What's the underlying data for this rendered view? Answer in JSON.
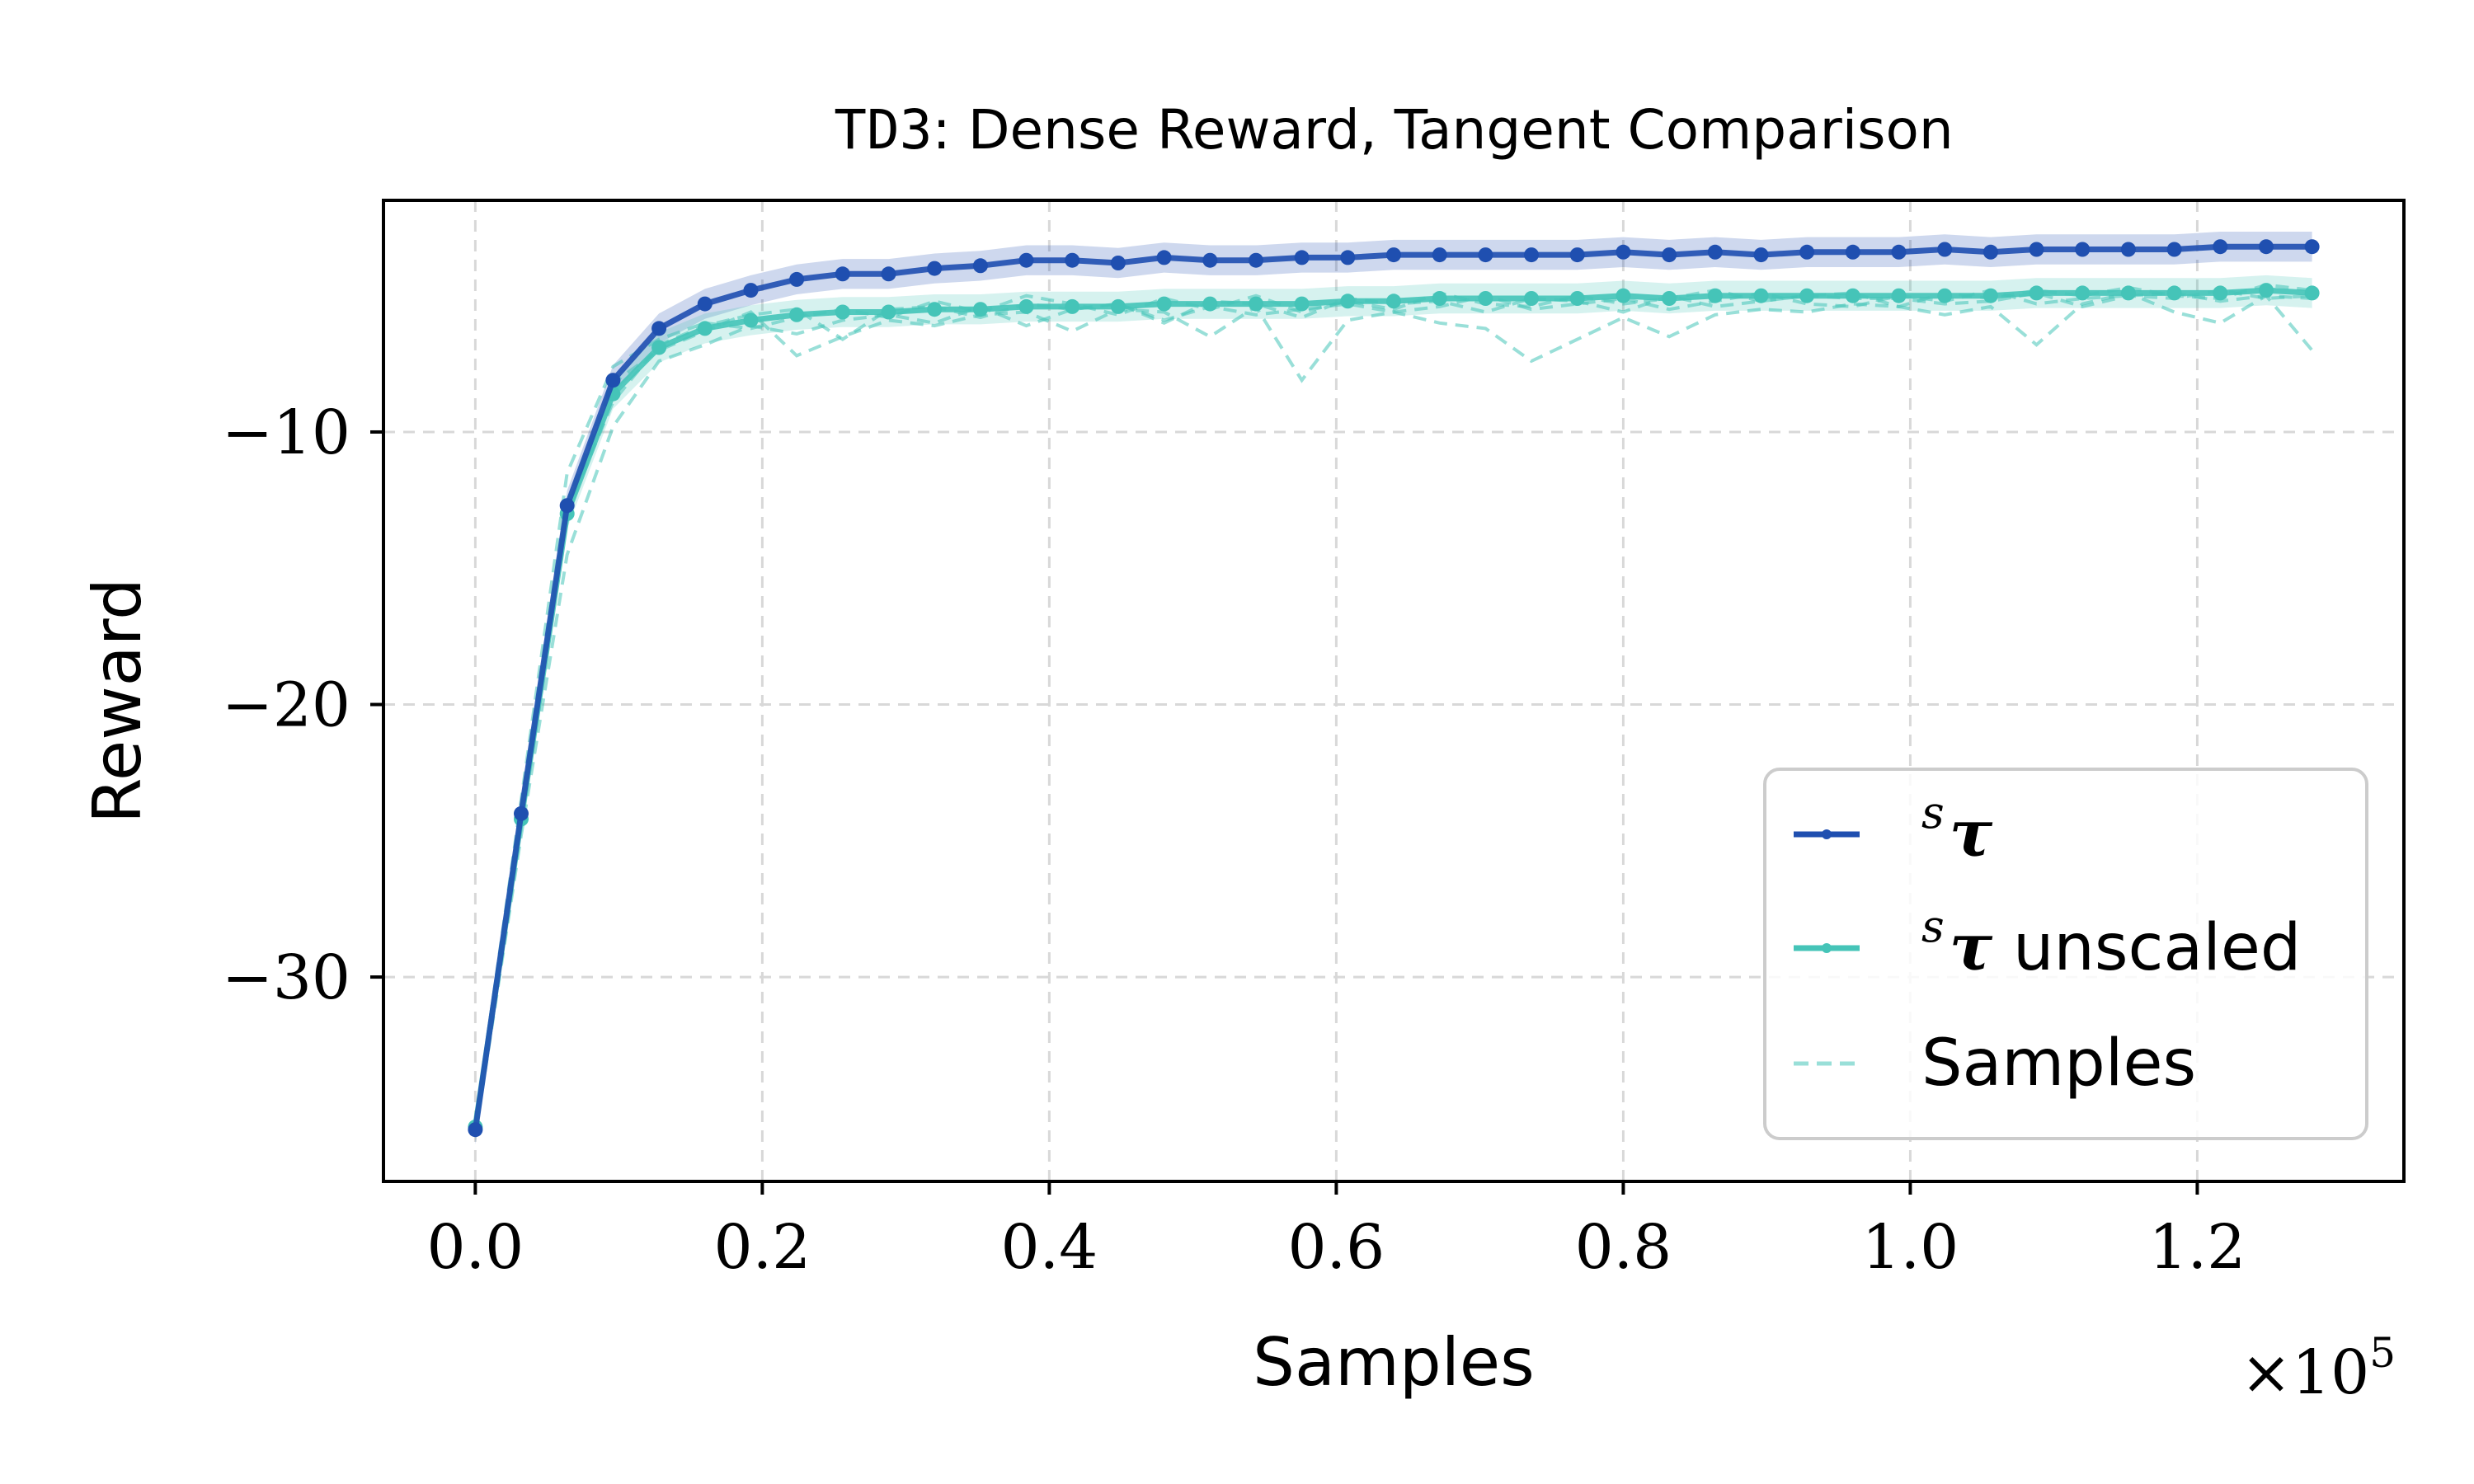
{
  "chart_data": {
    "type": "line",
    "title_code": "TD3",
    "title_rest": ": Dense Reward, Tangent Comparison",
    "xlabel": "Samples",
    "ylabel": "Reward",
    "x_multiplier": "×10",
    "x_multiplier_exp": "5",
    "xlim": [
      -0.064,
      1.344
    ],
    "ylim": [
      -37.5,
      -1.5
    ],
    "x_ticks": [
      0.0,
      0.2,
      0.4,
      0.6,
      0.8,
      1.0,
      1.2
    ],
    "x_tick_labels": [
      "0.0",
      "0.2",
      "0.4",
      "0.6",
      "0.8",
      "1.0",
      "1.2"
    ],
    "y_ticks": [
      -10,
      -20,
      -30
    ],
    "y_tick_labels": [
      "−10",
      "−20",
      "−30"
    ],
    "grid": true,
    "legend_position": "lower-right",
    "x": [
      0.0,
      0.032,
      0.064,
      0.096,
      0.128,
      0.16,
      0.192,
      0.224,
      0.256,
      0.288,
      0.32,
      0.352,
      0.384,
      0.416,
      0.448,
      0.48,
      0.512,
      0.544,
      0.576,
      0.608,
      0.64,
      0.672,
      0.704,
      0.736,
      0.768,
      0.8,
      0.832,
      0.864,
      0.896,
      0.928,
      0.96,
      0.992,
      1.024,
      1.056,
      1.088,
      1.12,
      1.152,
      1.184,
      1.216,
      1.248,
      1.28
    ],
    "series": [
      {
        "name": "s τ",
        "name_sup": "s",
        "name_main": "τ",
        "name_suffix": "",
        "color": "#1f4fb0",
        "values": [
          -35.6,
          -24.0,
          -12.7,
          -8.1,
          -6.2,
          -5.3,
          -4.8,
          -4.4,
          -4.2,
          -4.2,
          -4.0,
          -3.9,
          -3.7,
          -3.7,
          -3.8,
          -3.6,
          -3.7,
          -3.7,
          -3.6,
          -3.6,
          -3.5,
          -3.5,
          -3.5,
          -3.5,
          -3.5,
          -3.4,
          -3.5,
          -3.4,
          -3.5,
          -3.4,
          -3.4,
          -3.4,
          -3.3,
          -3.4,
          -3.3,
          -3.3,
          -3.3,
          -3.3,
          -3.2,
          -3.2,
          -3.2
        ]
      },
      {
        "name": "s τ unscaled",
        "name_sup": "s",
        "name_main": "τ",
        "name_suffix": " unscaled",
        "color": "#45c4b8",
        "values": [
          -35.5,
          -24.2,
          -13.0,
          -8.6,
          -6.9,
          -6.2,
          -5.9,
          -5.7,
          -5.6,
          -5.6,
          -5.5,
          -5.5,
          -5.4,
          -5.4,
          -5.4,
          -5.3,
          -5.3,
          -5.3,
          -5.3,
          -5.2,
          -5.2,
          -5.1,
          -5.1,
          -5.1,
          -5.1,
          -5.0,
          -5.1,
          -5.0,
          -5.0,
          -5.0,
          -5.0,
          -5.0,
          -5.0,
          -5.0,
          -4.9,
          -4.9,
          -4.9,
          -4.9,
          -4.9,
          -4.8,
          -4.9
        ]
      }
    ],
    "samples": {
      "name": "Samples",
      "color": "#45c4b8",
      "runs": [
        [
          -35.4,
          -23.5,
          -11.5,
          -7.6,
          -6.6,
          -6.0,
          -6.2,
          -5.8,
          -5.5,
          -5.8,
          -5.2,
          -5.6,
          -5.0,
          -5.3,
          -5.7,
          -5.1,
          -5.5,
          -5.0,
          -5.6,
          -5.2,
          -5.5,
          -4.9,
          -5.3,
          -5.4,
          -5.0,
          -5.3,
          -5.1,
          -4.8,
          -5.2,
          -5.0,
          -4.9,
          -5.4,
          -4.9,
          -5.1,
          -4.8,
          -5.0,
          -4.7,
          -5.0,
          -5.1,
          -4.6,
          -4.8
        ],
        [
          -35.8,
          -24.8,
          -14.5,
          -9.8,
          -7.4,
          -6.8,
          -6.1,
          -6.4,
          -5.9,
          -5.7,
          -6.0,
          -5.4,
          -6.1,
          -5.5,
          -5.3,
          -5.9,
          -5.4,
          -5.7,
          -5.5,
          -5.3,
          -5.6,
          -5.4,
          -5.0,
          -5.5,
          -5.3,
          -5.1,
          -5.5,
          -5.2,
          -4.9,
          -5.3,
          -5.4,
          -5.0,
          -5.2,
          -4.8,
          -5.3,
          -5.1,
          -5.0,
          -4.9,
          -5.2,
          -5.0,
          -5.1
        ],
        [
          -35.3,
          -24.0,
          -12.6,
          -8.2,
          -7.0,
          -6.3,
          -5.6,
          -7.2,
          -6.5,
          -5.9,
          -6.1,
          -5.7,
          -5.6,
          -6.3,
          -5.5,
          -5.6,
          -6.5,
          -5.4,
          -8.1,
          -5.9,
          -5.6,
          -6.0,
          -6.2,
          -7.4,
          -6.6,
          -5.8,
          -6.5,
          -5.7,
          -5.5,
          -5.6,
          -5.3,
          -5.4,
          -5.7,
          -5.4,
          -6.8,
          -5.3,
          -4.9,
          -5.6,
          -6.0,
          -5.0,
          -7.0
        ],
        [
          -35.6,
          -24.3,
          -12.9,
          -8.9,
          -6.8,
          -6.1,
          -5.7,
          -5.5,
          -6.6,
          -5.5,
          -5.4,
          -5.8,
          -5.3,
          -5.5,
          -5.3,
          -6.0,
          -5.2,
          -5.3,
          -5.8,
          -5.1,
          -5.3,
          -5.2,
          -5.6,
          -5.1,
          -5.2,
          -5.6,
          -5.0,
          -5.4,
          -5.2,
          -5.0,
          -5.1,
          -5.1,
          -5.3,
          -5.2,
          -4.9,
          -5.4,
          -5.0,
          -5.1,
          -4.8,
          -5.1,
          -5.0
        ]
      ]
    }
  }
}
